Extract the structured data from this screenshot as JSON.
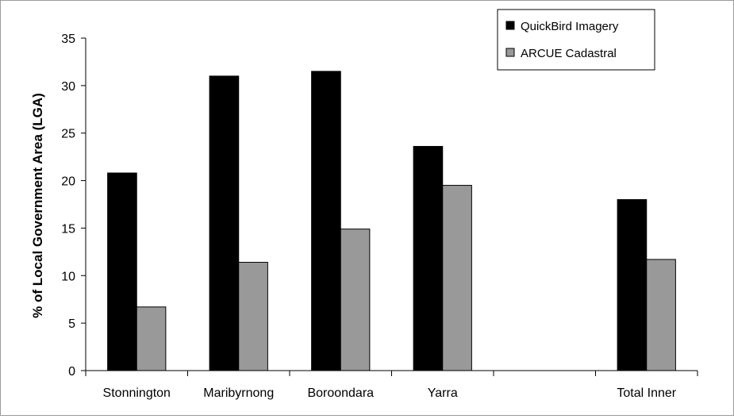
{
  "chart_data": {
    "type": "bar",
    "title": "",
    "xlabel": "",
    "ylabel": "% of Local Government Area (LGA)",
    "ylim": [
      0,
      35
    ],
    "yticks": [
      0,
      5,
      10,
      15,
      20,
      25,
      30,
      35
    ],
    "categories": [
      "Stonnington",
      "Maribyrnong",
      "Boroondara",
      "Yarra",
      "",
      "Total Inner"
    ],
    "series": [
      {
        "name": "QuickBird Imagery",
        "color": "#000000",
        "values": [
          20.8,
          31.0,
          31.5,
          23.6,
          null,
          18.0
        ]
      },
      {
        "name": "ARCUE Cadastral",
        "color": "#999999",
        "values": [
          6.7,
          11.4,
          14.9,
          19.5,
          null,
          11.7
        ]
      }
    ],
    "grid": false,
    "legend_position": "top-right"
  }
}
